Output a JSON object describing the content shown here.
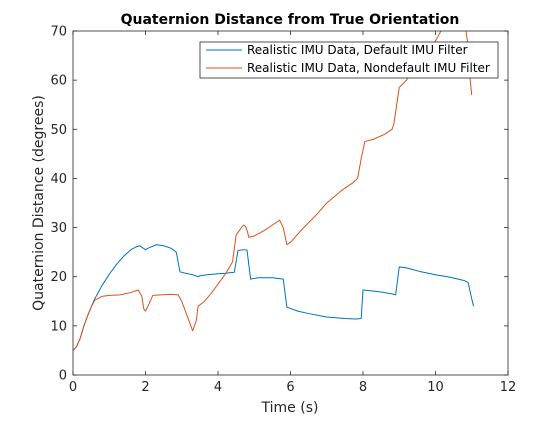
{
  "chart_data": {
    "type": "line",
    "title": "Quaternion Distance from True Orientation",
    "xlabel": "Time (s)",
    "ylabel": "Quaternion Distance (degrees)",
    "xlim": [
      0,
      12
    ],
    "ylim": [
      0,
      70
    ],
    "xticks": [
      0,
      2,
      4,
      6,
      8,
      10,
      12
    ],
    "yticks": [
      0,
      10,
      20,
      30,
      40,
      50,
      60,
      70
    ],
    "xtick_labels": [
      "0",
      "2",
      "4",
      "6",
      "8",
      "10",
      "12"
    ],
    "ytick_labels": [
      "0",
      "10",
      "20",
      "30",
      "40",
      "50",
      "60",
      "70"
    ],
    "grid": false,
    "legend_position": "top-right",
    "series": [
      {
        "name": "Realistic IMU Data, Default IMU Filter",
        "color": "#0072BD",
        "points": [
          [
            0,
            5
          ],
          [
            0.1,
            5.8
          ],
          [
            0.2,
            7.5
          ],
          [
            0.3,
            10
          ],
          [
            0.4,
            12
          ],
          [
            0.5,
            13.8
          ],
          [
            0.6,
            15.5
          ],
          [
            0.8,
            18.2
          ],
          [
            1.0,
            20.5
          ],
          [
            1.2,
            22.5
          ],
          [
            1.4,
            24.2
          ],
          [
            1.6,
            25.5
          ],
          [
            1.75,
            26.1
          ],
          [
            1.85,
            26.3
          ],
          [
            1.9,
            26
          ],
          [
            2.0,
            25.5
          ],
          [
            2.1,
            25.9
          ],
          [
            2.3,
            26.5
          ],
          [
            2.5,
            26.3
          ],
          [
            2.7,
            25.8
          ],
          [
            2.85,
            25
          ],
          [
            2.95,
            21
          ],
          [
            3.1,
            20.7
          ],
          [
            3.3,
            20.4
          ],
          [
            3.45,
            20
          ],
          [
            3.5,
            20.2
          ],
          [
            3.7,
            20.4
          ],
          [
            4.0,
            20.6
          ],
          [
            4.2,
            20.7
          ],
          [
            4.45,
            20.9
          ],
          [
            4.55,
            25.3
          ],
          [
            4.7,
            25.5
          ],
          [
            4.8,
            25.4
          ],
          [
            4.9,
            19.5
          ],
          [
            5.1,
            19.8
          ],
          [
            5.5,
            19.8
          ],
          [
            5.8,
            19.5
          ],
          [
            5.9,
            13.8
          ],
          [
            6.2,
            13
          ],
          [
            6.5,
            12.5
          ],
          [
            7.0,
            11.8
          ],
          [
            7.5,
            11.5
          ],
          [
            7.8,
            11.4
          ],
          [
            7.95,
            11.5
          ],
          [
            8.0,
            17.3
          ],
          [
            8.4,
            17
          ],
          [
            8.8,
            16.5
          ],
          [
            8.9,
            16.3
          ],
          [
            9.0,
            22
          ],
          [
            9.2,
            21.8
          ],
          [
            9.6,
            21
          ],
          [
            10.0,
            20.4
          ],
          [
            10.4,
            19.9
          ],
          [
            10.8,
            19.2
          ],
          [
            10.9,
            18.8
          ],
          [
            11.0,
            15.5
          ],
          [
            11.05,
            14
          ]
        ]
      },
      {
        "name": "Realistic IMU Data, Nondefault IMU Filter",
        "color": "#D95319",
        "points": [
          [
            0,
            5
          ],
          [
            0.1,
            5.8
          ],
          [
            0.2,
            7.5
          ],
          [
            0.3,
            10
          ],
          [
            0.4,
            12
          ],
          [
            0.5,
            13.8
          ],
          [
            0.6,
            15.2
          ],
          [
            0.8,
            16
          ],
          [
            1.0,
            16.2
          ],
          [
            1.3,
            16.3
          ],
          [
            1.6,
            16.8
          ],
          [
            1.8,
            17.3
          ],
          [
            1.9,
            16
          ],
          [
            1.95,
            13.5
          ],
          [
            2.0,
            13
          ],
          [
            2.1,
            14.5
          ],
          [
            2.2,
            16.2
          ],
          [
            2.4,
            16.3
          ],
          [
            2.7,
            16.4
          ],
          [
            2.9,
            16.3
          ],
          [
            3.0,
            15
          ],
          [
            3.1,
            13
          ],
          [
            3.25,
            10
          ],
          [
            3.3,
            9
          ],
          [
            3.4,
            11
          ],
          [
            3.45,
            14
          ],
          [
            3.6,
            14.8
          ],
          [
            3.8,
            16.5
          ],
          [
            4.0,
            18.5
          ],
          [
            4.2,
            20.5
          ],
          [
            4.4,
            23
          ],
          [
            4.5,
            28.5
          ],
          [
            4.6,
            29.5
          ],
          [
            4.7,
            30.5
          ],
          [
            4.75,
            30.3
          ],
          [
            4.8,
            29.5
          ],
          [
            4.85,
            28
          ],
          [
            5.0,
            28.3
          ],
          [
            5.3,
            29.5
          ],
          [
            5.5,
            30.5
          ],
          [
            5.7,
            31.5
          ],
          [
            5.8,
            30
          ],
          [
            5.9,
            26.5
          ],
          [
            6.0,
            27
          ],
          [
            6.3,
            29.5
          ],
          [
            6.7,
            32.5
          ],
          [
            7.0,
            35
          ],
          [
            7.4,
            37.5
          ],
          [
            7.7,
            39
          ],
          [
            7.85,
            40
          ],
          [
            7.95,
            44
          ],
          [
            8.05,
            47.5
          ],
          [
            8.3,
            48
          ],
          [
            8.6,
            49
          ],
          [
            8.8,
            50
          ],
          [
            8.85,
            51
          ],
          [
            9.0,
            58.5
          ],
          [
            9.2,
            60
          ],
          [
            9.35,
            62
          ],
          [
            9.6,
            64
          ],
          [
            10.0,
            68
          ],
          [
            10.3,
            72
          ],
          [
            10.6,
            73
          ],
          [
            10.8,
            72
          ],
          [
            10.9,
            67
          ],
          [
            10.95,
            60.5
          ],
          [
            11.0,
            57
          ]
        ]
      }
    ]
  }
}
